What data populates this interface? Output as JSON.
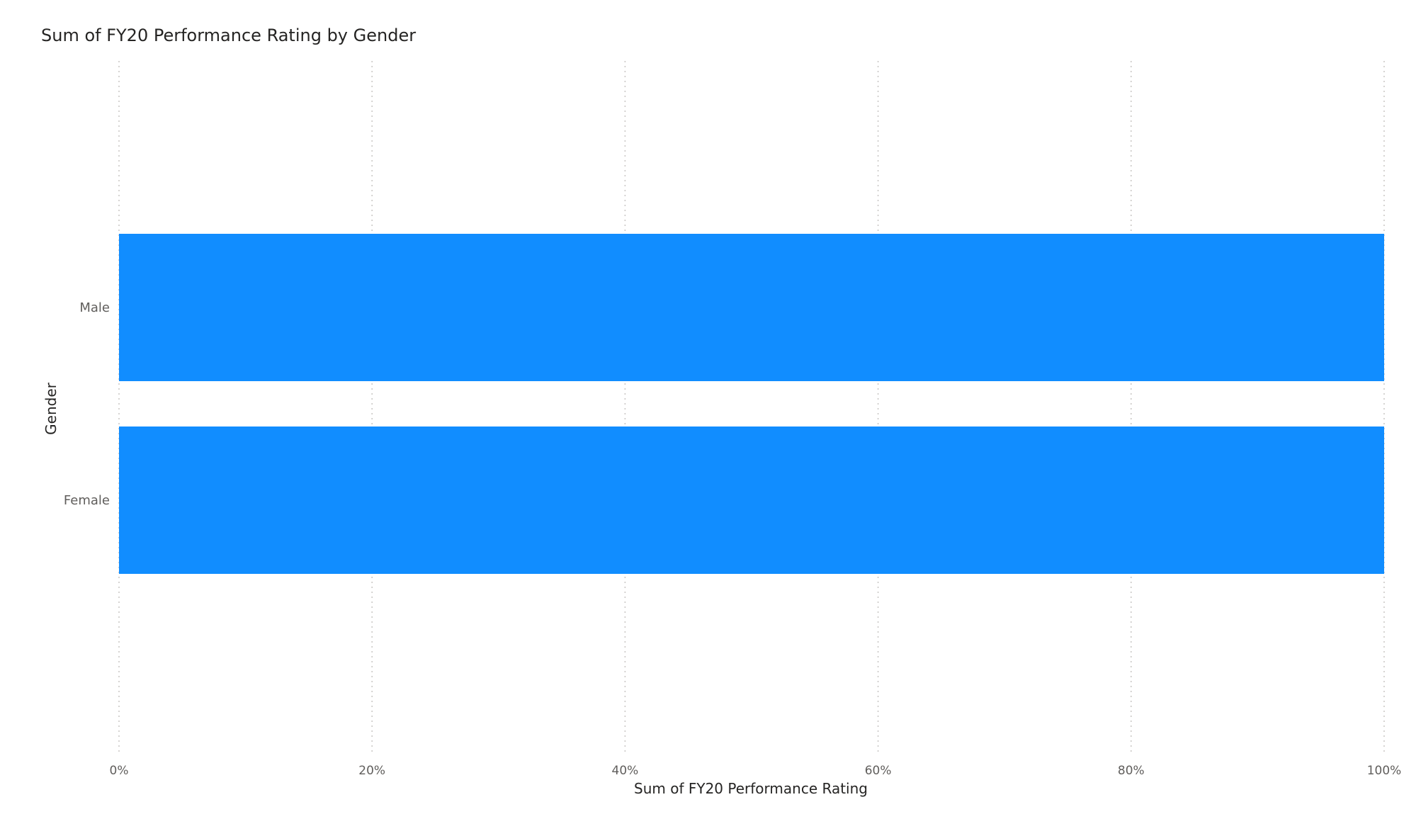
{
  "chart_data": {
    "type": "bar",
    "orientation": "horizontal",
    "stacked": "100%",
    "title": "Sum of FY20 Performance Rating by Gender",
    "xlabel": "Sum of FY20 Performance Rating",
    "ylabel": "Gender",
    "categories": [
      "Male",
      "Female"
    ],
    "values": [
      100,
      100
    ],
    "value_unit": "%",
    "xlim": [
      0,
      100
    ],
    "xticks": [
      0,
      20,
      40,
      60,
      80,
      100
    ],
    "xtick_labels": [
      "0%",
      "20%",
      "40%",
      "60%",
      "80%",
      "100%"
    ],
    "grid": "vertical-dotted",
    "bar_color": "#118DFF"
  }
}
